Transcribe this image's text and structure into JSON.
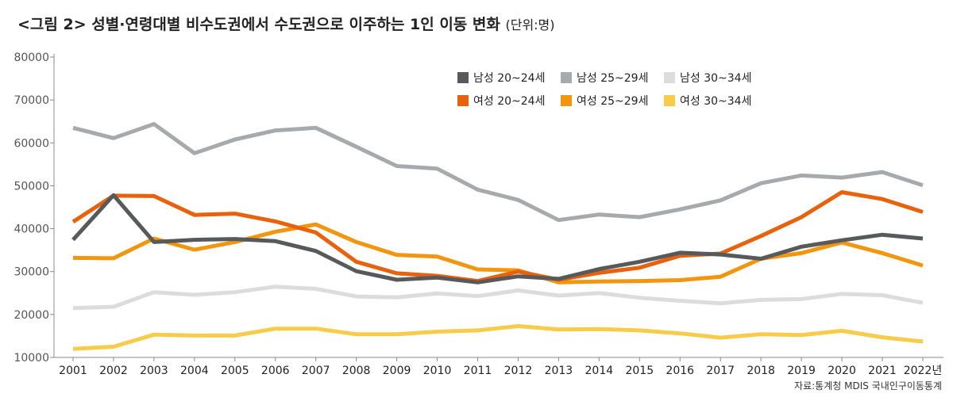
{
  "title": "<그림 2> 성별·연령대별 비수도권에서 수도권으로 이주하는 1인 이동 변화",
  "unit_label": "(단위:명)",
  "source": "자료:통계청 MDIS 국내인구이동통계",
  "chart_data": {
    "type": "line",
    "title": "<그림 2> 성별·연령대별 비수도권에서 수도권으로 이주하는 1인 이동 변화",
    "ylim": [
      10000,
      80000
    ],
    "yticks": [
      10000,
      20000,
      30000,
      40000,
      50000,
      60000,
      70000,
      80000
    ],
    "x": [
      "2001",
      "2002",
      "2003",
      "2004",
      "2005",
      "2006",
      "2007",
      "2008",
      "2009",
      "2010",
      "2011",
      "2012",
      "2013",
      "2014",
      "2015",
      "2016",
      "2017",
      "2018",
      "2019",
      "2020",
      "2021",
      "2022년"
    ],
    "legend_position": "top-right",
    "series": [
      {
        "name": "여성 30~34세",
        "color": "#f7cc4a",
        "values": [
          12000,
          12500,
          15300,
          15100,
          15100,
          16700,
          16700,
          15400,
          15400,
          16000,
          16300,
          17300,
          16500,
          16600,
          16300,
          15600,
          14600,
          15400,
          15200,
          16200,
          14700,
          13700
        ]
      },
      {
        "name": "남성 30~34세",
        "color": "#dcdcdc",
        "values": [
          21500,
          21800,
          25200,
          24600,
          25200,
          26500,
          26000,
          24200,
          24000,
          24900,
          24300,
          25600,
          24400,
          25000,
          23900,
          23200,
          22600,
          23400,
          23600,
          24800,
          24500,
          22700
        ]
      },
      {
        "name": "여성 25~29세",
        "color": "#f2950f",
        "values": [
          33200,
          33100,
          37700,
          35100,
          36900,
          39300,
          41000,
          36900,
          33900,
          33500,
          30500,
          30300,
          27500,
          27700,
          27800,
          28000,
          28800,
          33000,
          34300,
          36800,
          34300,
          31400
        ]
      },
      {
        "name": "남성 25~29세",
        "color": "#a7a9ac",
        "values": [
          63500,
          61100,
          64400,
          57600,
          60800,
          62900,
          63500,
          59100,
          54600,
          54000,
          49100,
          46700,
          42000,
          43300,
          42700,
          44500,
          46600,
          50600,
          52400,
          51900,
          53200,
          50100
        ]
      },
      {
        "name": "여성 20~24세",
        "color": "#e8610c",
        "values": [
          41600,
          47700,
          47600,
          43200,
          43500,
          41700,
          39100,
          32300,
          29600,
          29000,
          27800,
          30000,
          28100,
          29700,
          30900,
          33700,
          34200,
          38300,
          42700,
          48500,
          46900,
          43900
        ]
      },
      {
        "name": "남성 20~24세",
        "color": "#58595b",
        "values": [
          37400,
          47800,
          36900,
          37400,
          37600,
          37100,
          34800,
          30100,
          28100,
          28600,
          27500,
          28900,
          28300,
          30600,
          32300,
          34400,
          34000,
          33000,
          35800,
          37300,
          38600,
          37700
        ]
      }
    ],
    "legend_order": [
      "남성 20~24세",
      "남성 25~29세",
      "남성 30~34세",
      "여성 20~24세",
      "여성 25~29세",
      "여성 30~34세"
    ]
  }
}
